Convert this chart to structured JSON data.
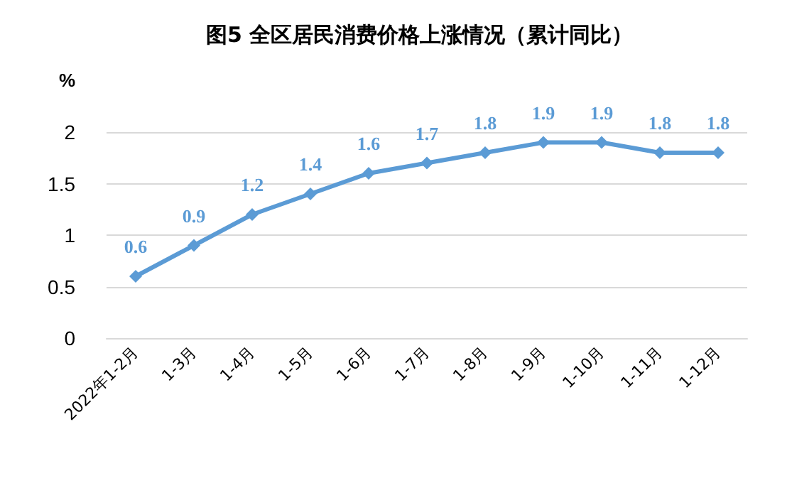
{
  "chart_data": {
    "type": "line",
    "title": "图5 全区居民消费价格上涨情况（累计同比）",
    "ylabel": "%",
    "categories": [
      "2022年1-2月",
      "1-3月",
      "1-4月",
      "1-5月",
      "1-6月",
      "1-7月",
      "1-8月",
      "1-9月",
      "1-10月",
      "1-11月",
      "1-12月"
    ],
    "series": [
      {
        "color": "#5b9bd5",
        "values": [
          0.6,
          0.9,
          1.2,
          1.4,
          1.6,
          1.7,
          1.8,
          1.9,
          1.9,
          1.8,
          1.8
        ]
      }
    ],
    "ylim": [
      0,
      2
    ],
    "yticks": [
      0,
      0.5,
      1,
      1.5,
      2
    ],
    "grid": "y",
    "marker": "diamond",
    "line_style": "solid",
    "data_labels": true
  }
}
